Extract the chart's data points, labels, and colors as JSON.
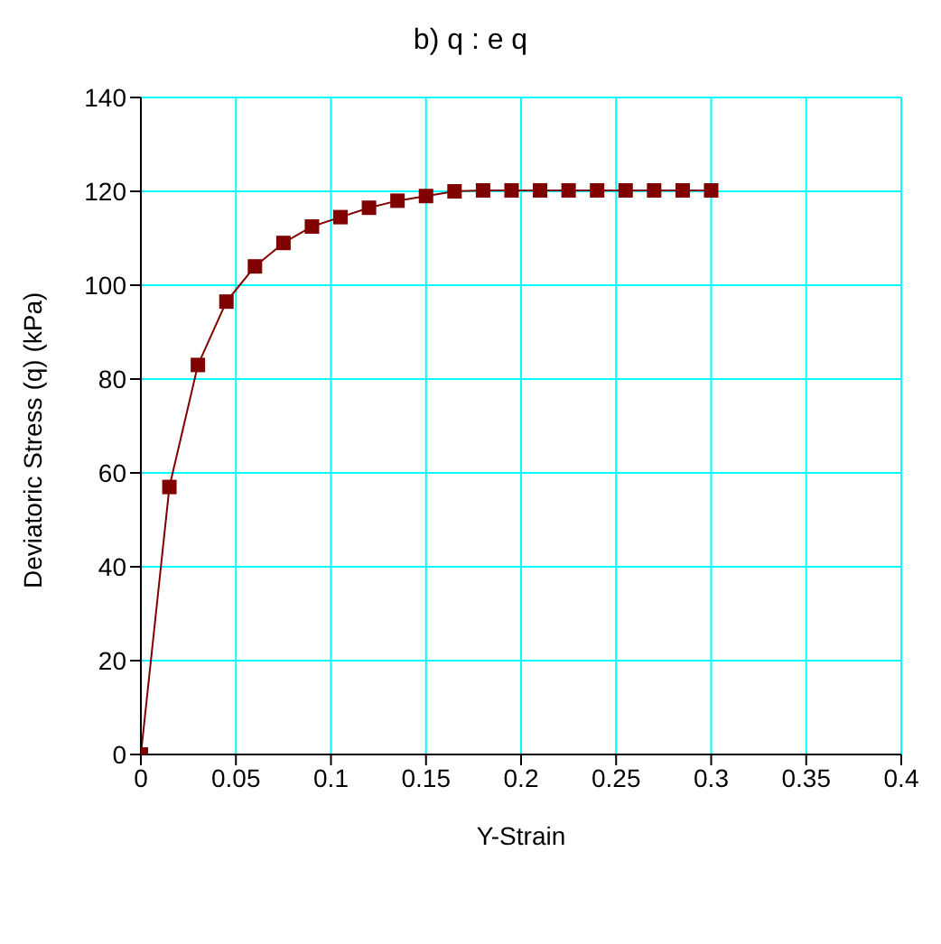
{
  "chart_data": {
    "type": "line",
    "title": "b) q : e q",
    "xlabel": "Y-Strain",
    "ylabel": "Deviatoric Stress (q) (kPa)",
    "x": [
      0,
      0.015,
      0.03,
      0.045,
      0.06,
      0.075,
      0.09,
      0.105,
      0.12,
      0.135,
      0.15,
      0.165,
      0.18,
      0.195,
      0.21,
      0.225,
      0.24,
      0.255,
      0.27,
      0.285,
      0.3
    ],
    "series": [
      {
        "color": "#800000",
        "values": [
          0,
          57,
          83,
          96.5,
          104,
          109,
          112.5,
          114.5,
          116.5,
          118,
          119,
          120,
          120.2,
          120.2,
          120.2,
          120.2,
          120.2,
          120.2,
          120.2,
          120.2,
          120.2
        ]
      }
    ],
    "xlim": [
      0,
      0.4
    ],
    "xticks": [
      0,
      0.05,
      0.1,
      0.15,
      0.2,
      0.25,
      0.3,
      0.35,
      0.4
    ],
    "ylim": [
      0,
      140
    ],
    "yticks": [
      0,
      20,
      40,
      60,
      80,
      100,
      120,
      140
    ],
    "grid": true,
    "marker": "square",
    "line_style": "solid"
  }
}
